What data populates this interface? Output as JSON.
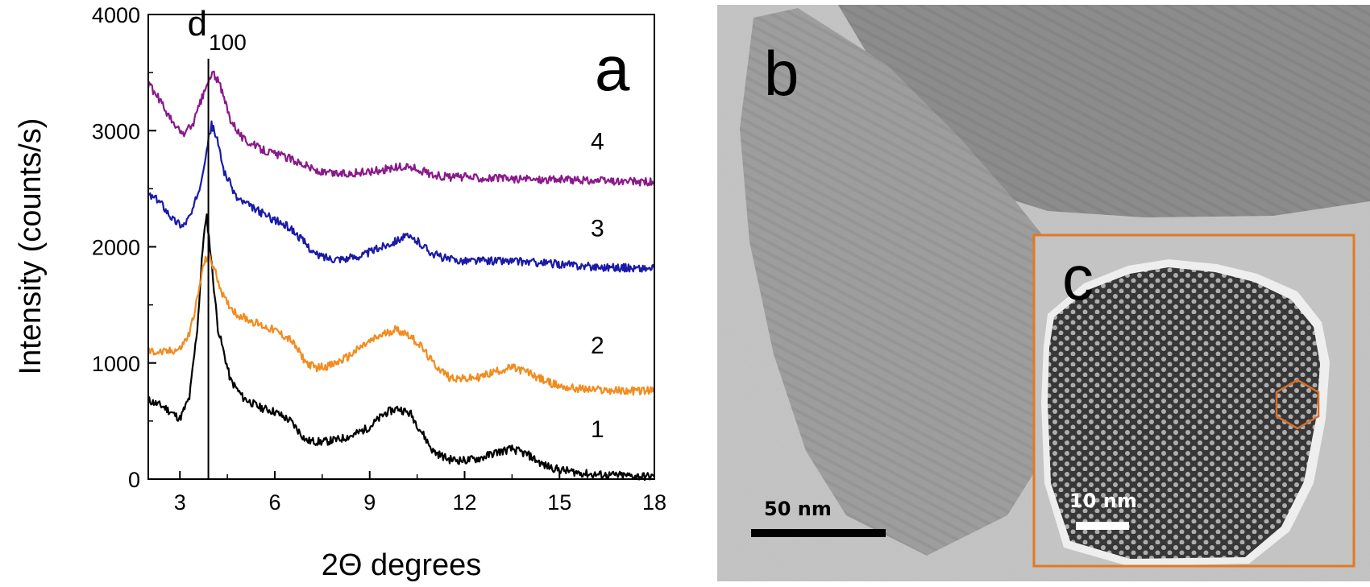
{
  "figure": {
    "panels": {
      "a": "a",
      "b": "b",
      "c": "c"
    },
    "scale_bars": {
      "b": "50 nm",
      "c": "10 nm"
    },
    "colors": {
      "inset_frame": "#e07a22",
      "hexagon": "#d4702a",
      "tem_background": "#c6c6c6"
    }
  },
  "chart_data": {
    "type": "line",
    "xlabel": "2Θ degrees",
    "ylabel": "Intensity (counts/s)",
    "xlim": [
      2,
      18
    ],
    "ylim": [
      0,
      4000
    ],
    "xticks": [
      3,
      6,
      9,
      12,
      15,
      18
    ],
    "xtick_labels": [
      "3",
      "6",
      "9",
      "12",
      "15",
      "18"
    ],
    "yticks": [
      0,
      1000,
      2000,
      3000,
      4000
    ],
    "ytick_labels": [
      "0",
      "1000",
      "2000",
      "3000",
      "4000"
    ],
    "annotation": {
      "main": "d",
      "sub": "100",
      "x": 3.9
    },
    "series": [
      {
        "name": "1",
        "color": "#000000",
        "points": [
          [
            2.0,
            680
          ],
          [
            2.5,
            620
          ],
          [
            3.0,
            520
          ],
          [
            3.3,
            700
          ],
          [
            3.55,
            1300
          ],
          [
            3.75,
            2100
          ],
          [
            3.85,
            2250
          ],
          [
            3.95,
            2000
          ],
          [
            4.2,
            1300
          ],
          [
            4.6,
            850
          ],
          [
            5.0,
            700
          ],
          [
            5.5,
            620
          ],
          [
            6.0,
            580
          ],
          [
            6.5,
            500
          ],
          [
            7.0,
            330
          ],
          [
            7.5,
            320
          ],
          [
            8.0,
            340
          ],
          [
            8.5,
            380
          ],
          [
            9.0,
            450
          ],
          [
            9.5,
            570
          ],
          [
            9.9,
            610
          ],
          [
            10.3,
            560
          ],
          [
            10.7,
            380
          ],
          [
            11.0,
            240
          ],
          [
            11.5,
            170
          ],
          [
            12.0,
            160
          ],
          [
            12.5,
            180
          ],
          [
            13.0,
            230
          ],
          [
            13.5,
            260
          ],
          [
            14.0,
            210
          ],
          [
            14.5,
            120
          ],
          [
            15.0,
            80
          ],
          [
            15.5,
            60
          ],
          [
            16.0,
            40
          ],
          [
            17.0,
            30
          ],
          [
            18.0,
            20
          ]
        ]
      },
      {
        "name": "2",
        "color": "#f28c1e",
        "points": [
          [
            2.0,
            1100
          ],
          [
            2.5,
            1090
          ],
          [
            3.0,
            1120
          ],
          [
            3.3,
            1250
          ],
          [
            3.55,
            1550
          ],
          [
            3.75,
            1850
          ],
          [
            3.9,
            1930
          ],
          [
            4.1,
            1800
          ],
          [
            4.4,
            1550
          ],
          [
            4.8,
            1420
          ],
          [
            5.2,
            1370
          ],
          [
            5.6,
            1320
          ],
          [
            6.0,
            1280
          ],
          [
            6.5,
            1200
          ],
          [
            7.0,
            1000
          ],
          [
            7.3,
            960
          ],
          [
            7.8,
            980
          ],
          [
            8.3,
            1050
          ],
          [
            8.8,
            1150
          ],
          [
            9.3,
            1230
          ],
          [
            9.8,
            1290
          ],
          [
            10.2,
            1250
          ],
          [
            10.6,
            1150
          ],
          [
            11.0,
            1000
          ],
          [
            11.5,
            880
          ],
          [
            12.0,
            860
          ],
          [
            12.5,
            880
          ],
          [
            13.0,
            930
          ],
          [
            13.5,
            960
          ],
          [
            14.0,
            920
          ],
          [
            14.5,
            850
          ],
          [
            15.0,
            800
          ],
          [
            15.5,
            780
          ],
          [
            16.0,
            770
          ],
          [
            17.0,
            760
          ],
          [
            18.0,
            760
          ]
        ]
      },
      {
        "name": "3",
        "color": "#1a1aa8",
        "points": [
          [
            2.0,
            2450
          ],
          [
            2.4,
            2380
          ],
          [
            2.8,
            2230
          ],
          [
            3.1,
            2180
          ],
          [
            3.4,
            2300
          ],
          [
            3.65,
            2550
          ],
          [
            3.85,
            2850
          ],
          [
            4.0,
            3050
          ],
          [
            4.15,
            2950
          ],
          [
            4.4,
            2650
          ],
          [
            4.8,
            2420
          ],
          [
            5.2,
            2350
          ],
          [
            5.6,
            2290
          ],
          [
            6.0,
            2230
          ],
          [
            6.5,
            2160
          ],
          [
            7.0,
            2020
          ],
          [
            7.3,
            1930
          ],
          [
            7.8,
            1900
          ],
          [
            8.3,
            1900
          ],
          [
            8.8,
            1930
          ],
          [
            9.3,
            1990
          ],
          [
            9.8,
            2050
          ],
          [
            10.1,
            2090
          ],
          [
            10.5,
            2050
          ],
          [
            11.0,
            1940
          ],
          [
            11.5,
            1890
          ],
          [
            12.0,
            1880
          ],
          [
            13.0,
            1880
          ],
          [
            14.0,
            1870
          ],
          [
            15.0,
            1850
          ],
          [
            16.0,
            1830
          ],
          [
            17.0,
            1820
          ],
          [
            18.0,
            1810
          ]
        ]
      },
      {
        "name": "4",
        "color": "#8a1a8a",
        "points": [
          [
            2.0,
            3400
          ],
          [
            2.4,
            3250
          ],
          [
            2.8,
            3050
          ],
          [
            3.1,
            2970
          ],
          [
            3.4,
            3050
          ],
          [
            3.7,
            3280
          ],
          [
            3.9,
            3420
          ],
          [
            4.05,
            3500
          ],
          [
            4.25,
            3400
          ],
          [
            4.6,
            3100
          ],
          [
            5.0,
            2930
          ],
          [
            5.5,
            2850
          ],
          [
            6.0,
            2800
          ],
          [
            6.5,
            2760
          ],
          [
            7.0,
            2700
          ],
          [
            7.4,
            2640
          ],
          [
            7.8,
            2630
          ],
          [
            8.3,
            2630
          ],
          [
            8.8,
            2640
          ],
          [
            9.3,
            2660
          ],
          [
            9.8,
            2680
          ],
          [
            10.2,
            2690
          ],
          [
            10.6,
            2660
          ],
          [
            11.0,
            2620
          ],
          [
            11.5,
            2600
          ],
          [
            12.0,
            2600
          ],
          [
            13.0,
            2590
          ],
          [
            14.0,
            2580
          ],
          [
            15.0,
            2580
          ],
          [
            16.0,
            2570
          ],
          [
            17.0,
            2560
          ],
          [
            18.0,
            2560
          ]
        ]
      }
    ],
    "series_label_positions": [
      {
        "name": "1",
        "x": 16.2,
        "y": 360
      },
      {
        "name": "2",
        "x": 16.2,
        "y": 1080
      },
      {
        "name": "3",
        "x": 16.2,
        "y": 2090
      },
      {
        "name": "4",
        "x": 16.2,
        "y": 2840
      }
    ]
  }
}
